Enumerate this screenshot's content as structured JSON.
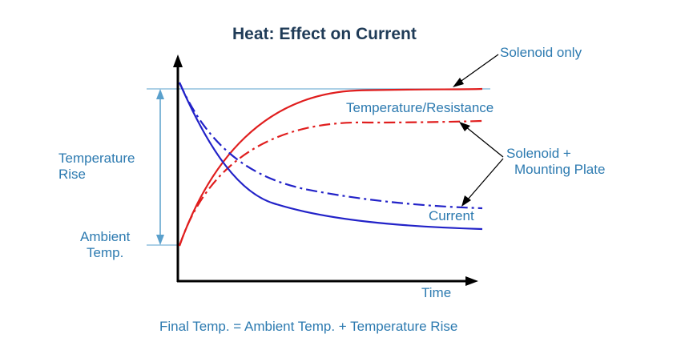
{
  "title": "Heat: Effect on Current",
  "labels": {
    "temperature_rise_line1": "Temperature",
    "temperature_rise_line2": "Rise",
    "ambient_line1": "Ambient",
    "ambient_line2": "Temp.",
    "solenoid_only": "Solenoid only",
    "temperature_resistance": "Temperature/Resistance",
    "solenoid_plate_line1": "Solenoid +",
    "solenoid_plate_line2": "Mounting Plate",
    "current": "Current",
    "time": "Time"
  },
  "formula": "Final Temp. = Ambient Temp. + Temperature Rise",
  "colors": {
    "temperature_curve": "#e01e1e",
    "current_curve": "#2222c8",
    "axis": "#000000",
    "label": "#2c7ab0",
    "title": "#1f3b57",
    "reference_line": "#5aa0cc"
  },
  "legend": {
    "solid_line": "solenoid only",
    "dash_dot_line": "solenoid + mounting plate"
  }
}
